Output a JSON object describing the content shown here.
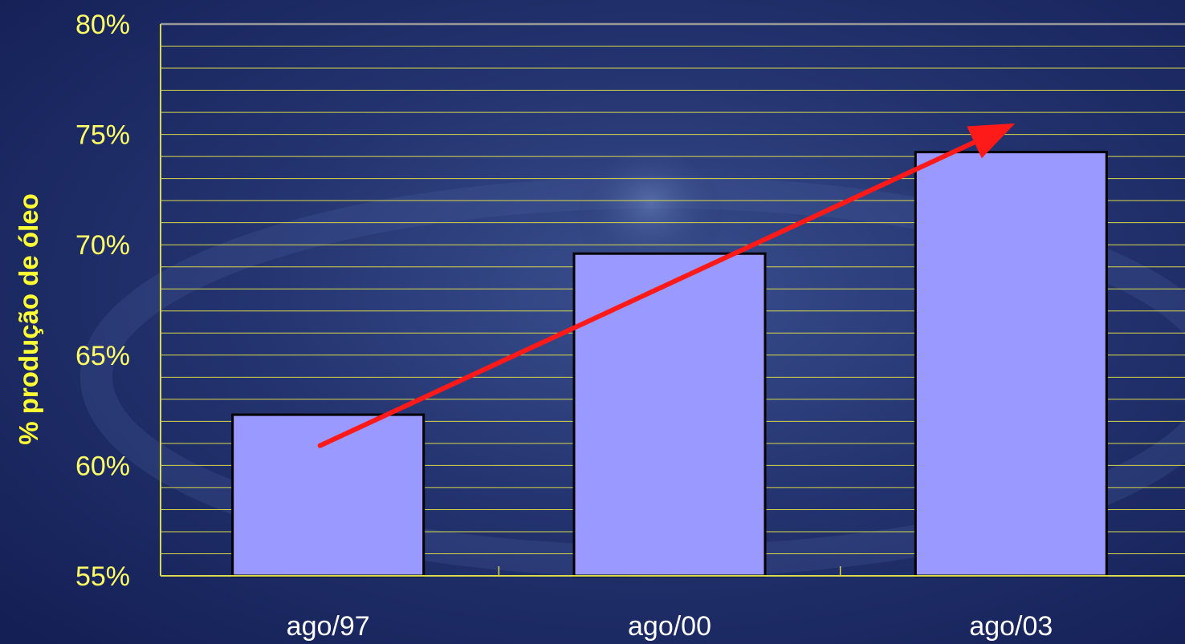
{
  "colors": {
    "background": "#1c2a66",
    "bar_fill": "#9999ff",
    "bar_stroke": "#000000",
    "gridline": "#d9d94a",
    "axis_text": "#ffff66",
    "category_text": "#ffffff",
    "ylabel_text": "#ffff33",
    "trend_arrow": "#ff1a1a"
  },
  "chart_data": {
    "type": "bar",
    "title": "",
    "xlabel": "",
    "ylabel": "% produção de óleo",
    "categories": [
      "ago/97",
      "ago/00",
      "ago/03"
    ],
    "values": [
      62.3,
      69.6,
      74.2
    ],
    "value_format": "percent",
    "ylim": [
      55,
      80
    ],
    "y_major_ticks": [
      55,
      60,
      65,
      70,
      75,
      80
    ],
    "y_tick_labels": [
      "55%",
      "60%",
      "65%",
      "70%",
      "75%",
      "80%"
    ],
    "y_minor_step": 1,
    "grid": true,
    "legend": "none",
    "annotation": {
      "type": "trend-arrow",
      "from": {
        "category": "ago/97",
        "value": 60.9
      },
      "to": {
        "category": "ago/03",
        "value": 75.5
      },
      "color": "#ff1a1a"
    }
  }
}
